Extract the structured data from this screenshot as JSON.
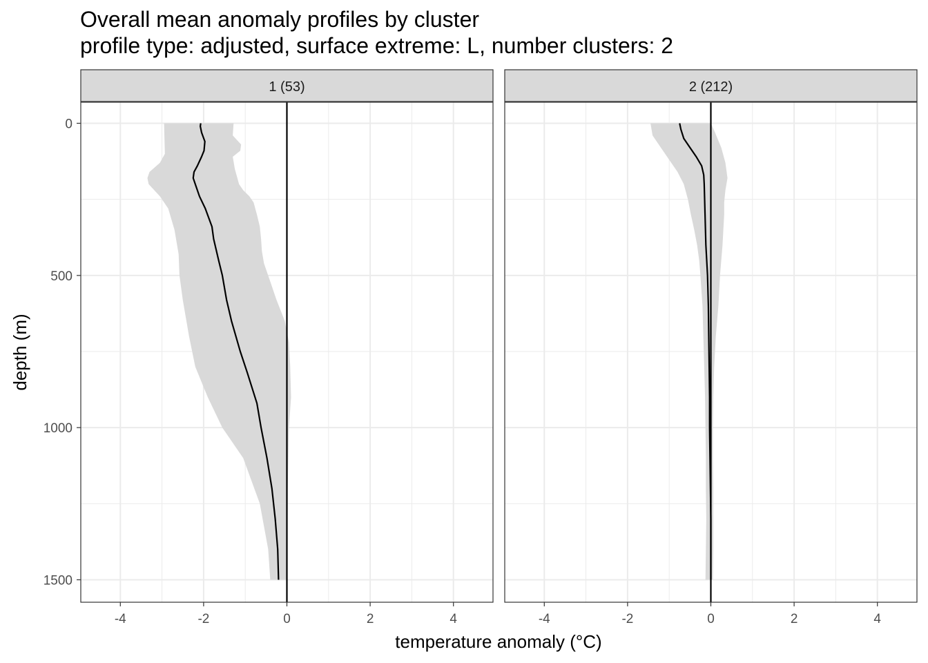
{
  "chart_data": {
    "type": "area",
    "title": "Overall mean anomaly profiles by cluster",
    "subtitle": "profile type: adjusted, surface extreme: L, number clusters: 2",
    "xlabel": "temperature anomaly (°C)",
    "ylabel": "depth (m)",
    "xlim": [
      -4.95,
      4.95
    ],
    "ylim": [
      -70,
      1570
    ],
    "y_reversed": true,
    "x_ticks": [
      -4,
      -2,
      0,
      2,
      4
    ],
    "x_tick_labels": [
      "-4",
      "-2",
      "0",
      "2",
      "4"
    ],
    "y_ticks": [
      0,
      500,
      1000,
      1500
    ],
    "y_tick_labels": [
      "0",
      "500",
      "1000",
      "1500"
    ],
    "grid": true,
    "reference_line_x": 0,
    "colors": {
      "ribbon": "#d9d9d9",
      "line": "#000000",
      "strip": "#d9d9d9",
      "grid": "#ebebeb"
    },
    "panels": [
      {
        "label": "1 (53)",
        "mean": [
          [
            -2.07,
            0
          ],
          [
            -2.08,
            10
          ],
          [
            -2.05,
            30
          ],
          [
            -1.97,
            60
          ],
          [
            -1.99,
            90
          ],
          [
            -2.05,
            110
          ],
          [
            -2.15,
            140
          ],
          [
            -2.23,
            160
          ],
          [
            -2.25,
            180
          ],
          [
            -2.2,
            200
          ],
          [
            -2.1,
            240
          ],
          [
            -1.96,
            280
          ],
          [
            -1.8,
            340
          ],
          [
            -1.76,
            380
          ],
          [
            -1.64,
            450
          ],
          [
            -1.55,
            500
          ],
          [
            -1.45,
            580
          ],
          [
            -1.33,
            650
          ],
          [
            -1.12,
            750
          ],
          [
            -0.95,
            820
          ],
          [
            -0.72,
            920
          ],
          [
            -0.62,
            1000
          ],
          [
            -0.48,
            1100
          ],
          [
            -0.36,
            1200
          ],
          [
            -0.28,
            1300
          ],
          [
            -0.22,
            1400
          ],
          [
            -0.2,
            1500
          ]
        ],
        "lower": [
          [
            -2.95,
            0
          ],
          [
            -2.93,
            100
          ],
          [
            -3.05,
            130
          ],
          [
            -3.3,
            160
          ],
          [
            -3.35,
            180
          ],
          [
            -3.32,
            200
          ],
          [
            -3.05,
            240
          ],
          [
            -2.85,
            280
          ],
          [
            -2.7,
            350
          ],
          [
            -2.6,
            430
          ],
          [
            -2.58,
            500
          ],
          [
            -2.5,
            580
          ],
          [
            -2.35,
            700
          ],
          [
            -2.2,
            800
          ],
          [
            -1.9,
            900
          ],
          [
            -1.55,
            1000
          ],
          [
            -1.05,
            1100
          ],
          [
            -0.65,
            1250
          ],
          [
            -0.45,
            1400
          ],
          [
            -0.4,
            1500
          ]
        ],
        "upper": [
          [
            -1.28,
            0
          ],
          [
            -1.3,
            40
          ],
          [
            -1.1,
            70
          ],
          [
            -1.12,
            90
          ],
          [
            -1.3,
            110
          ],
          [
            -1.25,
            150
          ],
          [
            -1.15,
            200
          ],
          [
            -1.05,
            220
          ],
          [
            -0.9,
            240
          ],
          [
            -0.8,
            260
          ],
          [
            -0.72,
            300
          ],
          [
            -0.65,
            340
          ],
          [
            -0.62,
            380
          ],
          [
            -0.6,
            420
          ],
          [
            -0.55,
            460
          ],
          [
            -0.4,
            520
          ],
          [
            -0.25,
            580
          ],
          [
            -0.05,
            650
          ],
          [
            0.05,
            720
          ],
          [
            0.08,
            800
          ],
          [
            0.1,
            900
          ],
          [
            0.05,
            1000
          ],
          [
            0.02,
            1200
          ],
          [
            0.01,
            1500
          ]
        ]
      },
      {
        "label": "2 (212)",
        "mean": [
          [
            -0.75,
            0
          ],
          [
            -0.72,
            20
          ],
          [
            -0.65,
            50
          ],
          [
            -0.5,
            80
          ],
          [
            -0.35,
            110
          ],
          [
            -0.22,
            140
          ],
          [
            -0.17,
            170
          ],
          [
            -0.16,
            200
          ],
          [
            -0.15,
            250
          ],
          [
            -0.14,
            300
          ],
          [
            -0.13,
            350
          ],
          [
            -0.12,
            400
          ],
          [
            -0.1,
            450
          ],
          [
            -0.08,
            500
          ],
          [
            -0.06,
            600
          ],
          [
            -0.05,
            700
          ],
          [
            -0.04,
            800
          ],
          [
            -0.03,
            900
          ],
          [
            -0.03,
            1000
          ],
          [
            -0.02,
            1100
          ],
          [
            -0.01,
            1200
          ],
          [
            0.0,
            1300
          ],
          [
            0.0,
            1500
          ]
        ],
        "lower": [
          [
            -1.45,
            0
          ],
          [
            -1.4,
            40
          ],
          [
            -1.2,
            80
          ],
          [
            -1.0,
            120
          ],
          [
            -0.8,
            160
          ],
          [
            -0.65,
            200
          ],
          [
            -0.55,
            250
          ],
          [
            -0.48,
            300
          ],
          [
            -0.4,
            350
          ],
          [
            -0.33,
            400
          ],
          [
            -0.28,
            450
          ],
          [
            -0.25,
            500
          ],
          [
            -0.2,
            600
          ],
          [
            -0.18,
            700
          ],
          [
            -0.16,
            800
          ],
          [
            -0.14,
            900
          ],
          [
            -0.13,
            1000
          ],
          [
            -0.12,
            1100
          ],
          [
            -0.12,
            1200
          ],
          [
            -0.11,
            1300
          ],
          [
            -0.12,
            1400
          ],
          [
            -0.13,
            1500
          ]
        ],
        "upper": [
          [
            0.0,
            0
          ],
          [
            0.1,
            30
          ],
          [
            0.25,
            80
          ],
          [
            0.35,
            130
          ],
          [
            0.4,
            180
          ],
          [
            0.35,
            220
          ],
          [
            0.32,
            260
          ],
          [
            0.32,
            300
          ],
          [
            0.3,
            350
          ],
          [
            0.28,
            400
          ],
          [
            0.25,
            450
          ],
          [
            0.22,
            500
          ],
          [
            0.18,
            600
          ],
          [
            0.12,
            700
          ],
          [
            0.08,
            800
          ],
          [
            0.06,
            900
          ],
          [
            0.05,
            1000
          ],
          [
            0.05,
            1100
          ],
          [
            0.06,
            1200
          ],
          [
            0.06,
            1300
          ],
          [
            0.06,
            1400
          ],
          [
            0.05,
            1500
          ]
        ]
      }
    ]
  }
}
